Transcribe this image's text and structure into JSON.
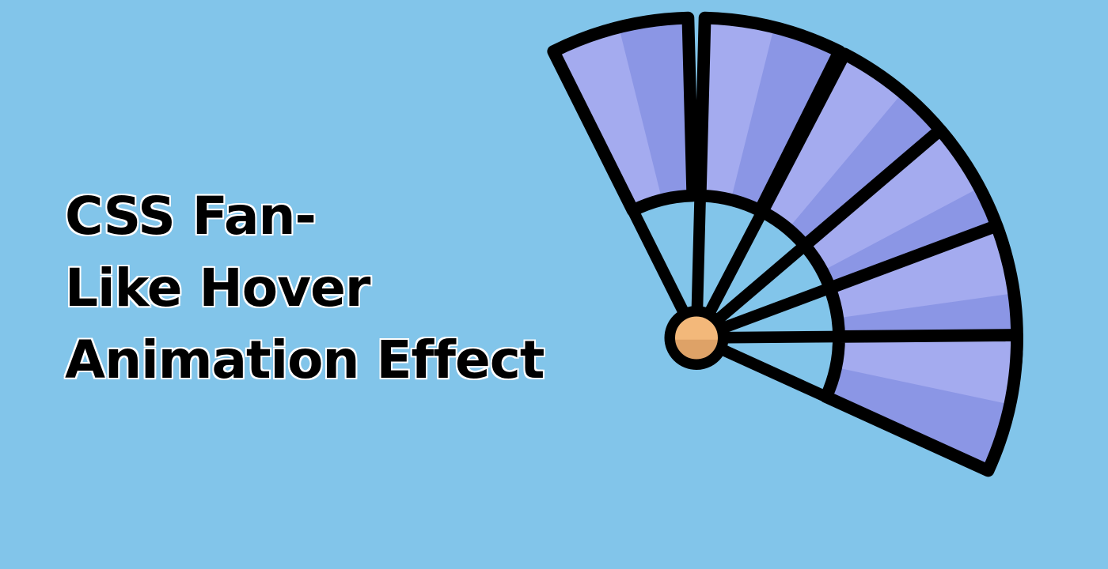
{
  "banner": {
    "title_lines": [
      "CSS Fan-",
      "Like Hover",
      "Animation Effect"
    ]
  },
  "colors": {
    "background": "#82c5ea",
    "blade_light": "#a4abef",
    "blade_dark": "#8b96e5",
    "outline": "#000000",
    "hub_light": "#f3b87a",
    "hub_dark": "#dea267"
  },
  "icon": {
    "name": "hand-fan-icon"
  }
}
